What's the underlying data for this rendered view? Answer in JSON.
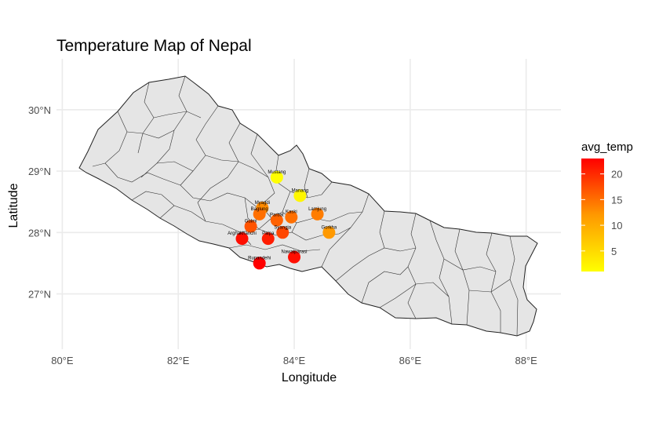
{
  "chart_data": {
    "type": "scatter",
    "title": "Temperature Map of Nepal",
    "xlabel": "Longitude",
    "ylabel": "Latitude",
    "xlim": [
      79.9,
      88.6
    ],
    "ylim": [
      26.1,
      30.7
    ],
    "x_ticks": [
      {
        "value": 80,
        "label": "80°E"
      },
      {
        "value": 82,
        "label": "82°E"
      },
      {
        "value": 84,
        "label": "84°E"
      },
      {
        "value": 86,
        "label": "86°E"
      },
      {
        "value": 88,
        "label": "88°E"
      }
    ],
    "y_ticks": [
      {
        "value": 27,
        "label": "27°N"
      },
      {
        "value": 28,
        "label": "28°N"
      },
      {
        "value": 29,
        "label": "29°N"
      },
      {
        "value": 30,
        "label": "30°N"
      }
    ],
    "grid": true,
    "legend": {
      "title": "avg_temp",
      "position": "right",
      "range": [
        1,
        23
      ],
      "ticks": [
        5,
        10,
        15,
        20
      ],
      "low_color": "#ffff00",
      "mid_color": "#ff9900",
      "high_color": "#ff0000"
    },
    "points": [
      {
        "label": "Mustang",
        "lon": 83.7,
        "lat": 28.9,
        "avg_temp": 1
      },
      {
        "label": "Manang",
        "lon": 84.1,
        "lat": 28.6,
        "avg_temp": 2
      },
      {
        "label": "Myagdi",
        "lon": 83.45,
        "lat": 28.4,
        "avg_temp": 13
      },
      {
        "label": "Baglung",
        "lon": 83.4,
        "lat": 28.3,
        "avg_temp": 15
      },
      {
        "label": "Lamjung",
        "lon": 84.4,
        "lat": 28.3,
        "avg_temp": 14
      },
      {
        "label": "Parbat",
        "lon": 83.7,
        "lat": 28.2,
        "avg_temp": 16
      },
      {
        "label": "Kaski",
        "lon": 83.95,
        "lat": 28.25,
        "avg_temp": 15
      },
      {
        "label": "Gulmi",
        "lon": 83.25,
        "lat": 28.1,
        "avg_temp": 17
      },
      {
        "label": "Syangja",
        "lon": 83.8,
        "lat": 28.0,
        "avg_temp": 18
      },
      {
        "label": "Gorkha",
        "lon": 84.6,
        "lat": 28.0,
        "avg_temp": 12
      },
      {
        "label": "Arghakhanchi",
        "lon": 83.1,
        "lat": 27.9,
        "avg_temp": 22
      },
      {
        "label": "Palpa",
        "lon": 83.55,
        "lat": 27.9,
        "avg_temp": 21
      },
      {
        "label": "Nawalparasi",
        "lon": 84.0,
        "lat": 27.6,
        "avg_temp": 22
      },
      {
        "label": "Rupandehi",
        "lon": 83.4,
        "lat": 27.5,
        "avg_temp": 23
      }
    ]
  }
}
